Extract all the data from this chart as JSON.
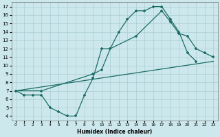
{
  "xlabel": "Humidex (Indice chaleur)",
  "bg_color": "#cce8ec",
  "grid_color": "#aacdd4",
  "line_color": "#1a6b65",
  "xlim": [
    -0.5,
    23.5
  ],
  "ylim": [
    3.5,
    17.5
  ],
  "yticks": [
    4,
    5,
    6,
    7,
    8,
    9,
    10,
    11,
    12,
    13,
    14,
    15,
    16,
    17
  ],
  "xticks": [
    0,
    1,
    2,
    3,
    4,
    5,
    6,
    7,
    8,
    9,
    10,
    11,
    12,
    13,
    14,
    15,
    16,
    17,
    18,
    19,
    20,
    21,
    22,
    23
  ],
  "line1_x": [
    0,
    1,
    2,
    3,
    4,
    5,
    6,
    7,
    8,
    9,
    10,
    11,
    12,
    13,
    14,
    15,
    16,
    17,
    18,
    19,
    20,
    21
  ],
  "line1_y": [
    7.0,
    6.5,
    6.5,
    6.5,
    5.0,
    4.5,
    4.0,
    4.0,
    6.5,
    8.5,
    12.0,
    12.0,
    14.0,
    15.5,
    16.5,
    16.5,
    17.0,
    17.0,
    15.5,
    14.0,
    11.5,
    10.5
  ],
  "line2_x": [
    0,
    3,
    9,
    10,
    11,
    14,
    17,
    18,
    19,
    20,
    21,
    22,
    23
  ],
  "line2_y": [
    7.0,
    7.0,
    9.0,
    9.5,
    12.0,
    13.5,
    16.5,
    15.2,
    13.8,
    13.5,
    12.0,
    11.5,
    11.0
  ],
  "line3_x": [
    0,
    23
  ],
  "line3_y": [
    7.0,
    10.5
  ]
}
